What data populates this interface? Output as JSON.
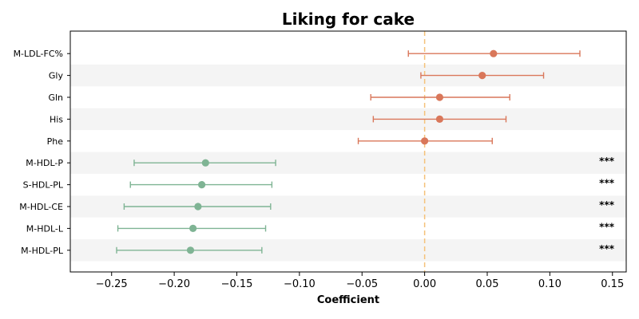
{
  "chart_data": {
    "type": "forest",
    "title": "Liking for cake",
    "xlabel": "Coefficient",
    "xlim": [
      -0.283,
      0.161
    ],
    "xticks": [
      -0.25,
      -0.2,
      -0.15,
      -0.1,
      -0.05,
      0.0,
      0.05,
      0.1,
      0.15
    ],
    "xtick_labels": [
      "−0.25",
      "−0.20",
      "−0.15",
      "−0.10",
      "−0.05",
      "0.00",
      "0.05",
      "0.10",
      "0.15"
    ],
    "reference_line": 0.0,
    "colors": {
      "positive": "#d9775a",
      "negative": "#7fb494",
      "reference": "#f5c27a",
      "band": "#f4f4f4"
    },
    "rows": [
      {
        "label": "M-LDL-FC%",
        "estimate": 0.055,
        "lower": -0.013,
        "upper": 0.124,
        "sig": ""
      },
      {
        "label": "Gly",
        "estimate": 0.046,
        "lower": -0.003,
        "upper": 0.095,
        "sig": ""
      },
      {
        "label": "Gln",
        "estimate": 0.012,
        "lower": -0.043,
        "upper": 0.068,
        "sig": ""
      },
      {
        "label": "His",
        "estimate": 0.012,
        "lower": -0.041,
        "upper": 0.065,
        "sig": ""
      },
      {
        "label": "Phe",
        "estimate": 0.0,
        "lower": -0.053,
        "upper": 0.054,
        "sig": ""
      },
      {
        "label": "M-HDL-P",
        "estimate": -0.175,
        "lower": -0.232,
        "upper": -0.119,
        "sig": "***"
      },
      {
        "label": "S-HDL-PL",
        "estimate": -0.178,
        "lower": -0.235,
        "upper": -0.122,
        "sig": "***"
      },
      {
        "label": "M-HDL-CE",
        "estimate": -0.181,
        "lower": -0.24,
        "upper": -0.123,
        "sig": "***"
      },
      {
        "label": "M-HDL-L",
        "estimate": -0.185,
        "lower": -0.245,
        "upper": -0.127,
        "sig": "***"
      },
      {
        "label": "M-HDL-PL",
        "estimate": -0.187,
        "lower": -0.246,
        "upper": -0.13,
        "sig": "***"
      }
    ]
  }
}
